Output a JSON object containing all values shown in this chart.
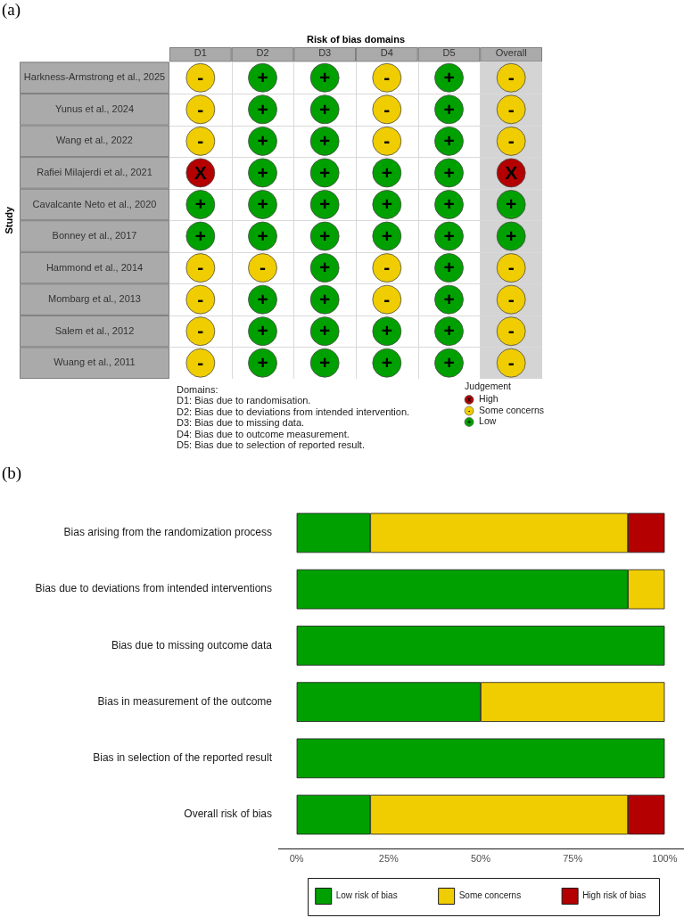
{
  "chart_data": [
    {
      "type": "heatmap",
      "title": "(a)",
      "xlabel": "Risk of bias domains",
      "ylabel": "Study",
      "categories": [
        "D1",
        "D2",
        "D3",
        "D4",
        "D5",
        "Overall"
      ],
      "y_categories": [
        "Harkness-Armstrong et al., 2025",
        "Yunus et al., 2024",
        "Wang et al., 2022",
        "Rafiei Milajerdi et al., 2021",
        "Cavalcante Neto et al., 2020",
        "Bonney et al., 2017",
        "Hammond et al., 2014",
        "Mombarg et al., 2013",
        "Salem et al., 2012",
        "Wuang et al., 2011"
      ],
      "cells": [
        [
          "-",
          "+",
          "+",
          "-",
          "+",
          "-"
        ],
        [
          "-",
          "+",
          "+",
          "-",
          "+",
          "-"
        ],
        [
          "-",
          "+",
          "+",
          "-",
          "+",
          "-"
        ],
        [
          "X",
          "+",
          "+",
          "+",
          "+",
          "X"
        ],
        [
          "+",
          "+",
          "+",
          "+",
          "+",
          "+"
        ],
        [
          "+",
          "+",
          "+",
          "+",
          "+",
          "+"
        ],
        [
          "-",
          "-",
          "+",
          "-",
          "+",
          "-"
        ],
        [
          "-",
          "+",
          "+",
          "-",
          "+",
          "-"
        ],
        [
          "-",
          "+",
          "+",
          "+",
          "+",
          "-"
        ],
        [
          "-",
          "+",
          "+",
          "+",
          "+",
          "-"
        ]
      ],
      "clabel": "Judgement",
      "cticks": [
        {
          "value": "X",
          "label": "High"
        },
        {
          "value": "-",
          "label": "Some concerns"
        },
        {
          "value": "+",
          "label": "Low"
        }
      ],
      "colors": [
        "#b40000",
        "#f0cd00",
        "#00a000"
      ],
      "bands": [
        {
          "axis": "x",
          "from": "Overall",
          "to": "Overall",
          "color": "#d4d4d4"
        }
      ],
      "annotations": [
        "Domains:",
        "D1: Bias due to randomisation.",
        "D2: Bias due to deviations from intended intervention.",
        "D3: Bias due to missing data.",
        "D4: Bias due to outcome measurement.",
        "D5: Bias due to selection of reported result."
      ]
    },
    {
      "type": "bar",
      "title": "(b)",
      "orientation": "horizontal",
      "stacked": true,
      "categories": [
        "Bias arising from the randomization process",
        "Bias due to deviations from intended interventions",
        "Bias due to missing outcome data",
        "Bias in measurement of the outcome",
        "Bias in selection of the reported result",
        "Overall risk of bias"
      ],
      "series": [
        {
          "name": "Low risk of bias",
          "color": "#00a000",
          "values": [
            20,
            90,
            100,
            50,
            100,
            20
          ]
        },
        {
          "name": "Some concerns",
          "color": "#f0cd00",
          "values": [
            70,
            10,
            0,
            50,
            0,
            70
          ]
        },
        {
          "name": "High risk of bias",
          "color": "#b40000",
          "values": [
            10,
            0,
            0,
            0,
            0,
            10
          ]
        }
      ],
      "xlim": [
        -5,
        105
      ],
      "xticks": [
        {
          "value": 0,
          "label": "0%"
        },
        {
          "value": 25,
          "label": "25%"
        },
        {
          "value": 50,
          "label": "50%"
        },
        {
          "value": 75,
          "label": "75%"
        },
        {
          "value": 100,
          "label": "100%"
        }
      ],
      "grid": false,
      "legend": "bottom"
    }
  ]
}
